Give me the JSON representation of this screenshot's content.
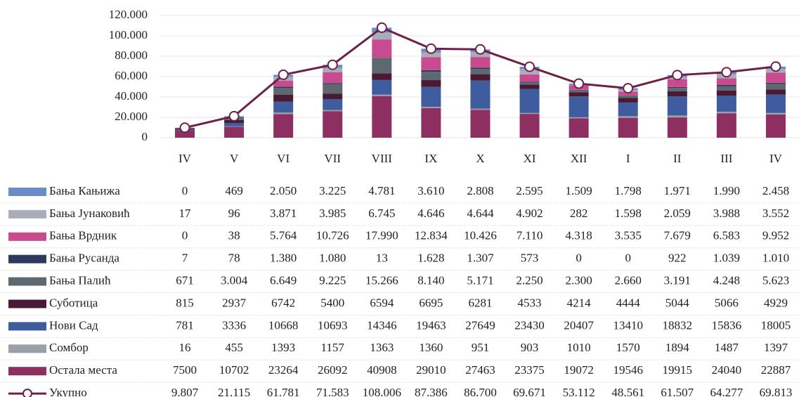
{
  "chart_data": {
    "type": "bar",
    "stacked": true,
    "categories": [
      "IV",
      "V",
      "VI",
      "VII",
      "VIII",
      "IX",
      "X",
      "XI",
      "XII",
      "I",
      "II",
      "III",
      "IV"
    ],
    "ylim": [
      0,
      120000
    ],
    "yticks": [
      0,
      {
        "value": 20000,
        "label": "20.000"
      },
      {
        "value": 40000,
        "label": "40.000"
      },
      {
        "value": 60000,
        "label": "60.000"
      },
      {
        "value": 80000,
        "label": "80.000"
      },
      {
        "value": 100000,
        "label": "100.000"
      },
      {
        "value": 120000,
        "label": "120.000"
      }
    ],
    "series": [
      {
        "name": "Бања Кањижа",
        "color": "#6b8cc9",
        "values": [
          0,
          469,
          2050,
          3225,
          4781,
          3610,
          2808,
          2595,
          1509,
          1798,
          1971,
          1990,
          2458
        ],
        "value_labels": [
          "0",
          "469",
          "2.050",
          "3.225",
          "4.781",
          "3.610",
          "2.808",
          "2.595",
          "1.509",
          "1.798",
          "1.971",
          "1.990",
          "2.458"
        ]
      },
      {
        "name": "Бања Јунаковић",
        "color": "#a9adb8",
        "values": [
          17,
          96,
          3871,
          3985,
          6745,
          4646,
          4644,
          4902,
          282,
          1598,
          2059,
          3988,
          3552
        ],
        "value_labels": [
          "17",
          "96",
          "3.871",
          "3.985",
          "6.745",
          "4.646",
          "4.644",
          "4.902",
          "282",
          "1.598",
          "2.059",
          "3.988",
          "3.552"
        ]
      },
      {
        "name": "Бања Врдник",
        "color": "#c84b8f",
        "values": [
          0,
          38,
          5764,
          10726,
          17990,
          12834,
          10426,
          7110,
          4318,
          3535,
          7679,
          6583,
          9952
        ],
        "value_labels": [
          "0",
          "38",
          "5.764",
          "10.726",
          "17.990",
          "12.834",
          "10.426",
          "7.110",
          "4.318",
          "3.535",
          "7.679",
          "6.583",
          "9.952"
        ]
      },
      {
        "name": "Бања Русанда",
        "color": "#2b3a5e",
        "values": [
          7,
          78,
          1380,
          1080,
          13,
          1628,
          1307,
          573,
          0,
          0,
          922,
          1039,
          1010
        ],
        "value_labels": [
          "7",
          "78",
          "1.380",
          "1.080",
          "13",
          "1.628",
          "1.307",
          "573",
          "0",
          "0",
          "922",
          "1.039",
          "1.010"
        ]
      },
      {
        "name": "Бања Палић",
        "color": "#5f676f",
        "values": [
          671,
          3004,
          6649,
          9225,
          15266,
          8140,
          5171,
          2250,
          2300,
          2660,
          3191,
          4248,
          5623
        ],
        "value_labels": [
          "671",
          "3.004",
          "6.649",
          "9.225",
          "15.266",
          "8.140",
          "5.171",
          "2.250",
          "2.300",
          "2.660",
          "3.191",
          "4.248",
          "5.623"
        ]
      },
      {
        "name": "Суботица",
        "color": "#4a1a35",
        "values": [
          815,
          2937,
          6742,
          5400,
          6594,
          6695,
          6281,
          4533,
          4214,
          4444,
          5044,
          5066,
          4929
        ]
      },
      {
        "name": "Нови Сад",
        "color": "#3f5c9e",
        "values": [
          781,
          3336,
          10668,
          10693,
          14346,
          19463,
          27649,
          23430,
          20407,
          13410,
          18832,
          15836,
          18005
        ]
      },
      {
        "name": "Сомбор",
        "color": "#9aa0a8",
        "values": [
          16,
          455,
          1393,
          1157,
          1363,
          1360,
          951,
          903,
          1010,
          1570,
          1894,
          1487,
          1397
        ]
      },
      {
        "name": "Остала места",
        "color": "#8e2f62",
        "values": [
          7500,
          10702,
          23264,
          26092,
          40908,
          29010,
          27463,
          23375,
          19072,
          19546,
          19915,
          24040,
          22887
        ]
      },
      {
        "name": "Укупно",
        "type": "line",
        "color": "#6d2048",
        "values": [
          9807,
          21115,
          61781,
          71583,
          108006,
          87386,
          86700,
          69671,
          53112,
          48561,
          61507,
          64277,
          69813
        ],
        "value_labels": [
          "9.807",
          "21.115",
          "61.781",
          "71.583",
          "108.006",
          "87.386",
          "86.700",
          "69.671",
          "53.112",
          "48.561",
          "61.507",
          "64.277",
          "69.813"
        ]
      }
    ]
  }
}
